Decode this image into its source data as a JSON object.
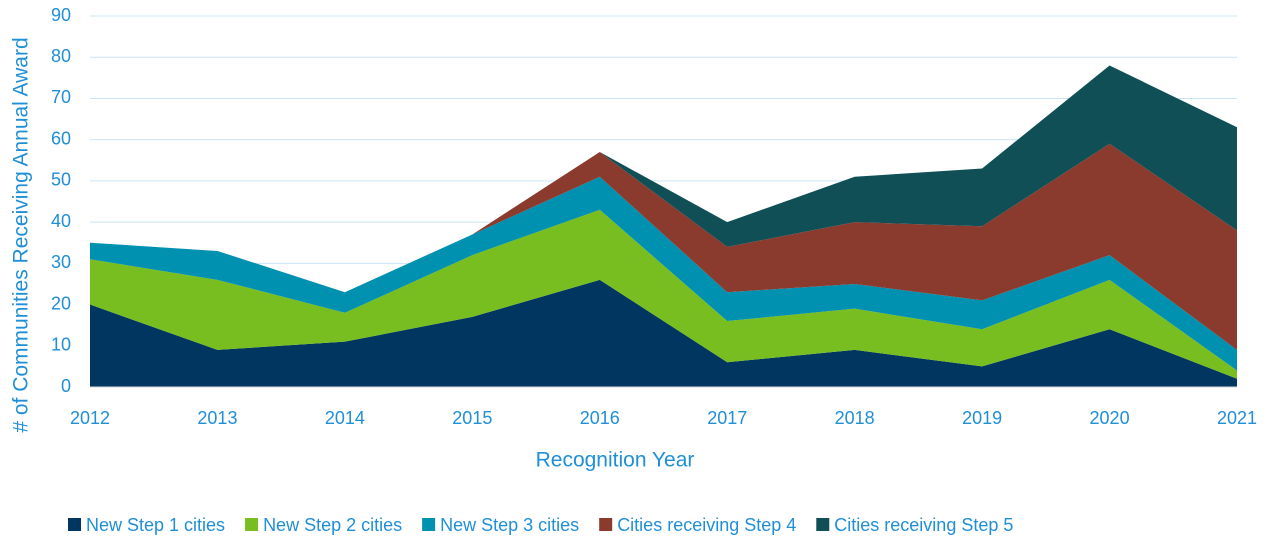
{
  "chart_data": {
    "type": "stacked_area",
    "x": [
      2012,
      2013,
      2014,
      2015,
      2016,
      2017,
      2018,
      2019,
      2020,
      2021
    ],
    "series": [
      {
        "name": "New Step 1 cities",
        "color": "#003660",
        "values": [
          20,
          9,
          11,
          17,
          26,
          6,
          9,
          5,
          14,
          2
        ]
      },
      {
        "name": "New Step 2 cities",
        "color": "#78be20",
        "values": [
          11,
          17,
          7,
          15,
          17,
          10,
          10,
          9,
          12,
          2
        ]
      },
      {
        "name": "New Step 3 cities",
        "color": "#0090b0",
        "values": [
          4,
          7,
          5,
          5,
          8,
          7,
          6,
          7,
          6,
          5
        ]
      },
      {
        "name": "Cities receiving Step 4",
        "color": "#8b3a2e",
        "values": [
          0,
          0,
          0,
          0,
          6,
          11,
          15,
          18,
          27,
          29
        ]
      },
      {
        "name": "Cities receiving Step 5",
        "color": "#0f4f55",
        "values": [
          0,
          0,
          0,
          0,
          0,
          6,
          11,
          14,
          19,
          25
        ]
      }
    ],
    "x_label": "Recognition Year",
    "y_label": "# of Communities Receiving Annual Award",
    "xlim": [
      2012,
      2021
    ],
    "xticks": [
      2012,
      2013,
      2014,
      2015,
      2016,
      2017,
      2018,
      2019,
      2020,
      2021
    ],
    "ylim": [
      0,
      90
    ],
    "yticks": [
      0,
      10,
      20,
      30,
      40,
      50,
      60,
      70,
      80,
      90
    ],
    "grid": true,
    "legend": "bottom"
  }
}
